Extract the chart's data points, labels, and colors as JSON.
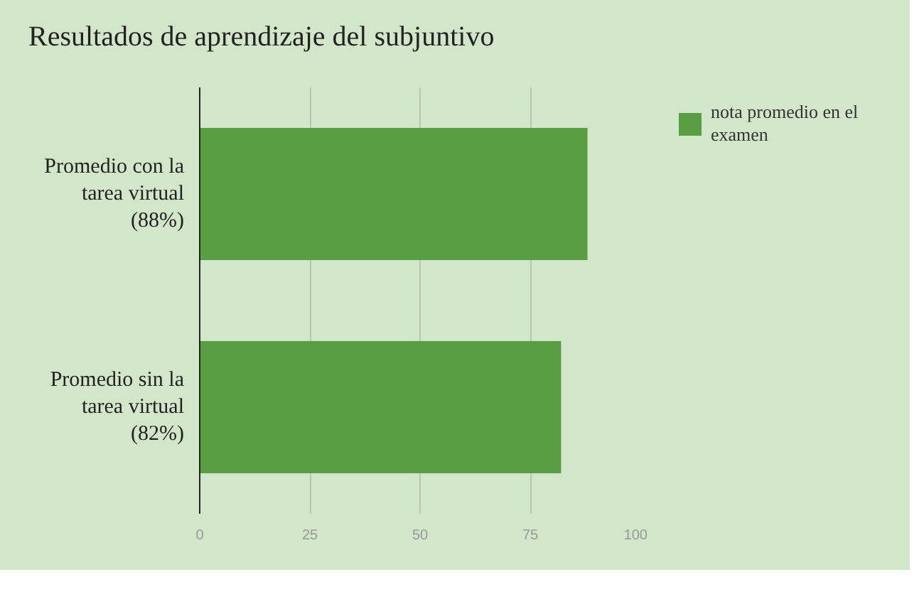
{
  "chart_data": {
    "type": "bar",
    "orientation": "horizontal",
    "title": "Resultados de aprendizaje del subjuntivo",
    "categories": [
      "Promedio con la tarea virtual (88%)",
      "Promedio sin la tarea virtual (82%)"
    ],
    "series": [
      {
        "name": "nota promedio en el examen",
        "color": "#5a9e44",
        "values": [
          88,
          82
        ]
      }
    ],
    "xlim": [
      0,
      100
    ],
    "xticks": [
      0,
      25,
      50,
      75,
      100
    ],
    "grid": "x",
    "legend": "top right"
  }
}
